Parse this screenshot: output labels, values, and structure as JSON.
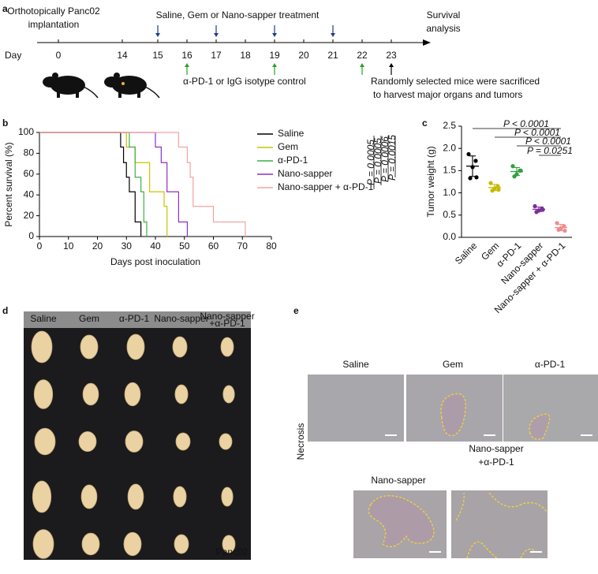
{
  "panel_labels": [
    "a",
    "b",
    "c",
    "d",
    "e"
  ],
  "timeline": {
    "implantation": [
      "Orthotopically Panc02",
      "implantation"
    ],
    "treatment": "Saline, Gem or Nano-sapper treatment",
    "survival": [
      "Survival",
      "analysis"
    ],
    "day_label": "Day",
    "days": [
      0,
      14,
      15,
      16,
      17,
      18,
      19,
      20,
      21,
      22,
      23
    ],
    "treatment_days": [
      15,
      17,
      19,
      21
    ],
    "antibody_days": [
      16,
      19,
      22
    ],
    "antibody": "α-PD-1 or IgG isotype control",
    "sacrifice_day": 23,
    "sacrifice": [
      "Randomly selected mice were sacrificed",
      "to harvest major organs and tumors"
    ]
  },
  "chart_data": [
    {
      "type": "line",
      "step": true,
      "xlabel": "Days post inoculation",
      "ylabel": "Percent survival (%)",
      "xlim": [
        0,
        80
      ],
      "xticks": [
        0,
        10,
        20,
        30,
        40,
        50,
        60,
        70,
        80
      ],
      "ylim": [
        0,
        100
      ],
      "yticks": [
        0,
        20,
        40,
        60,
        80,
        100
      ],
      "series": [
        {
          "name": "Saline",
          "color": "#000000",
          "x": [
            0,
            28,
            29,
            30,
            31,
            33,
            35
          ],
          "values": [
            100,
            86,
            71,
            57,
            43,
            14,
            0
          ]
        },
        {
          "name": "Gem",
          "color": "#c9c400",
          "x": [
            0,
            30,
            33,
            38,
            43,
            44
          ],
          "values": [
            100,
            86,
            71,
            43,
            29,
            0
          ]
        },
        {
          "name": "α-PD-1",
          "color": "#3cb043",
          "x": [
            0,
            31,
            33,
            35,
            36,
            37
          ],
          "values": [
            100,
            86,
            57,
            43,
            14,
            0
          ]
        },
        {
          "name": "Nano-sapper",
          "color": "#8b2fc9",
          "x": [
            0,
            40,
            42,
            44,
            48,
            51
          ],
          "values": [
            100,
            86,
            71,
            43,
            14,
            0
          ]
        },
        {
          "name": "Nano-sapper + α-PD-1",
          "color": "#f4a3a3",
          "x": [
            0,
            48,
            51,
            52,
            53,
            60,
            71
          ],
          "values": [
            100,
            86,
            71,
            57,
            29,
            14,
            0
          ]
        }
      ],
      "p_values": [
        "P = 0.0005",
        "P = 0.0005",
        "P = 0.0006",
        "P = 0.0015"
      ]
    },
    {
      "type": "scatter",
      "ylabel": "Tumor weight (g)",
      "categories": [
        "Saline",
        "Gem",
        "α-PD-1",
        "Nano-sapper",
        "Nano-sapper + α-PD-1"
      ],
      "ylim": [
        0,
        2.5
      ],
      "yticks": [
        {
          "value": 0,
          "label": "0.0"
        },
        0.5,
        {
          "value": 1,
          "label": "1.0"
        },
        1.5,
        {
          "value": 2,
          "label": "2.0"
        },
        2.5
      ],
      "series": [
        {
          "color": "#000000",
          "values": [
            1.87,
            1.72,
            1.58,
            1.33,
            1.35
          ],
          "mean": 1.6,
          "sd": 0.23
        },
        {
          "color": "#c8b800",
          "values": [
            1.22,
            1.15,
            1.1,
            1.05,
            1.07
          ],
          "mean": 1.12,
          "sd": 0.07
        },
        {
          "color": "#30a040",
          "values": [
            1.6,
            1.5,
            1.42,
            1.37,
            1.5
          ],
          "mean": 1.48,
          "sd": 0.09
        },
        {
          "color": "#7a2e9a",
          "values": [
            0.7,
            0.65,
            0.6,
            0.57,
            0.62
          ],
          "mean": 0.63,
          "sd": 0.05
        },
        {
          "color": "#f08a8a",
          "values": [
            0.32,
            0.25,
            0.2,
            0.17,
            0.15
          ],
          "mean": 0.22,
          "sd": 0.07
        }
      ],
      "comparisons": [
        {
          "groups": [
            "Saline",
            "Nano-sapper + α-PD-1"
          ],
          "label": "P < 0.0001"
        },
        {
          "groups": [
            "Gem",
            "Nano-sapper + α-PD-1"
          ],
          "label": "P < 0.0001"
        },
        {
          "groups": [
            "α-PD-1",
            "Nano-sapper + α-PD-1"
          ],
          "label": "P < 0.0001"
        },
        {
          "groups": [
            "Nano-sapper",
            "Nano-sapper + α-PD-1"
          ],
          "label": "P = 0.0251"
        }
      ]
    }
  ],
  "photo": {
    "labels": [
      [
        "Saline"
      ],
      [
        "Gem"
      ],
      [
        "α-PD-1"
      ],
      [
        "Nano-sapper"
      ],
      [
        "Nano-sapper",
        "+α-PD-1"
      ]
    ],
    "model": "Panc02"
  },
  "histology": {
    "row_label": "Necrosis",
    "labels": [
      [
        "Saline"
      ],
      [
        "Gem"
      ],
      [
        "α-PD-1"
      ],
      [
        "Nano-sapper"
      ],
      [
        "Nano-sapper",
        "+α-PD-1"
      ]
    ]
  }
}
